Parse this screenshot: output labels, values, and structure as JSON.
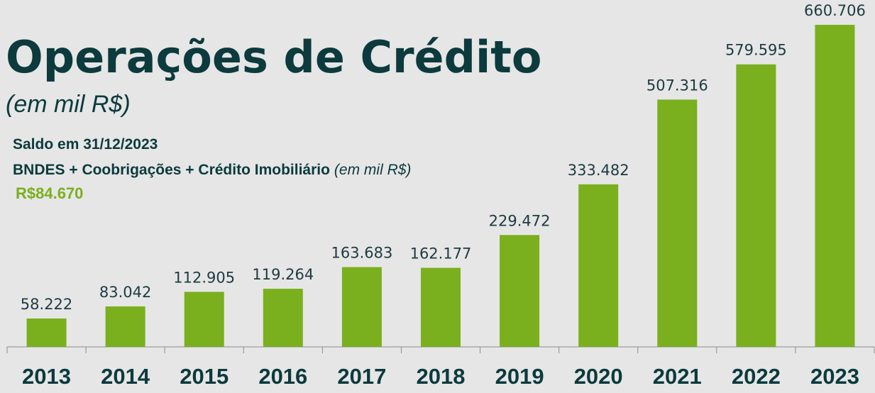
{
  "chart_data": {
    "type": "bar",
    "title": "Operações de Crédito",
    "subtitle": "(em mil R$)",
    "note": {
      "heading": "Saldo em 31/12/2023",
      "text": "BNDES + Coobrigações + Crédito Imobiliário",
      "unit": "(em mil R$)",
      "amount": "R$84.670"
    },
    "categories": [
      "2013",
      "2014",
      "2015",
      "2016",
      "2017",
      "2018",
      "2019",
      "2020",
      "2021",
      "2022",
      "2023"
    ],
    "values": [
      58222,
      83042,
      112905,
      119264,
      163683,
      162177,
      229472,
      333482,
      507316,
      579595,
      660706
    ],
    "value_labels": [
      "58.222",
      "83.042",
      "112.905",
      "119.264",
      "163.683",
      "162.177",
      "229.472",
      "333.482",
      "507.316",
      "579.595",
      "660.706"
    ],
    "color": "#7aaf1e"
  }
}
